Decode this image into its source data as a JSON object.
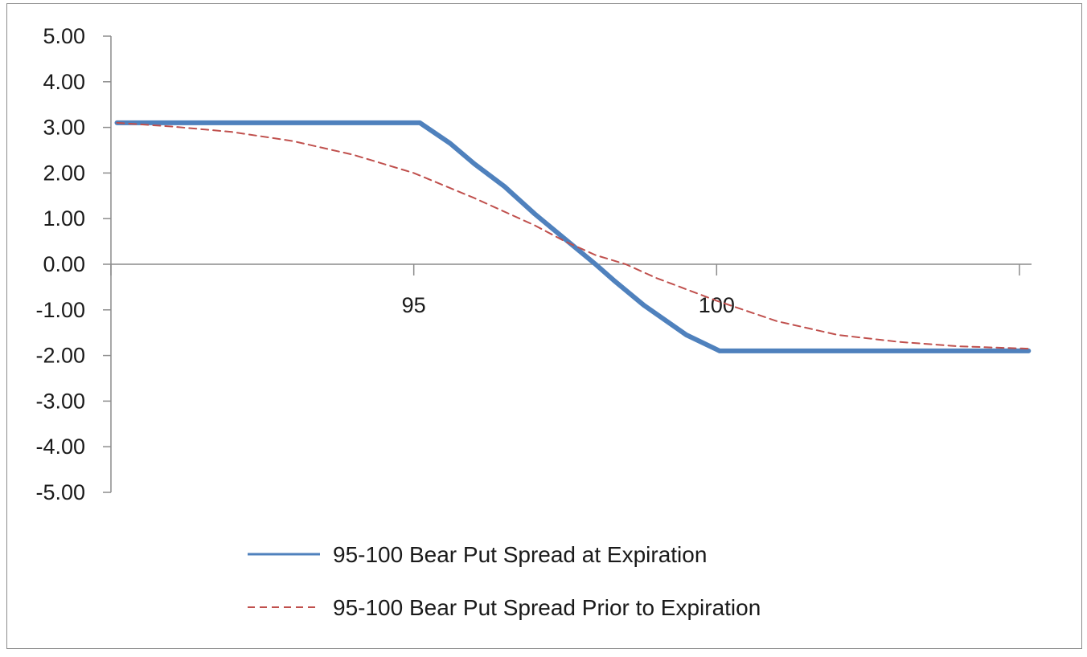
{
  "chart_data": {
    "type": "line",
    "xlim": [
      90,
      105
    ],
    "ylim": [
      -5,
      5
    ],
    "x_ticks": [
      {
        "value": 95,
        "label": "95"
      },
      {
        "value": 100,
        "label": "100"
      }
    ],
    "y_ticks": [
      {
        "value": 5,
        "label": "5.00"
      },
      {
        "value": 4,
        "label": "4.00"
      },
      {
        "value": 3,
        "label": "3.00"
      },
      {
        "value": 2,
        "label": "2.00"
      },
      {
        "value": 1,
        "label": "1.00"
      },
      {
        "value": 0,
        "label": "0.00"
      },
      {
        "value": -1,
        "label": "-1.00"
      },
      {
        "value": -2,
        "label": "-2.00"
      },
      {
        "value": -3,
        "label": "-3.00"
      },
      {
        "value": -4,
        "label": "-4.00"
      },
      {
        "value": -5,
        "label": "-5.00"
      }
    ],
    "grid": false,
    "legend_position": "bottom",
    "series": [
      {
        "name": "95-100 Bear Put Spread at Expiration",
        "color": "#4f81bd",
        "style": "solid",
        "x": [
          90.1,
          95.1,
          95.6,
          96.0,
          96.5,
          97.0,
          97.5,
          98.0,
          98.3,
          98.8,
          99.5,
          100.05,
          105.15
        ],
        "y": [
          3.1,
          3.1,
          2.65,
          2.2,
          1.7,
          1.1,
          0.55,
          0.0,
          -0.35,
          -0.9,
          -1.55,
          -1.9,
          -1.9
        ]
      },
      {
        "name": "95-100 Bear Put Spread Prior to Expiration",
        "color": "#c0504d",
        "style": "dashed",
        "x": [
          90.1,
          91.0,
          92.0,
          93.0,
          94.0,
          95.0,
          96.0,
          97.0,
          97.5,
          98.0,
          98.5,
          99.0,
          100.0,
          101.0,
          102.0,
          103.0,
          104.0,
          105.15
        ],
        "y": [
          3.1,
          3.02,
          2.9,
          2.7,
          2.4,
          2.0,
          1.45,
          0.85,
          0.5,
          0.2,
          0.0,
          -0.3,
          -0.8,
          -1.25,
          -1.55,
          -1.7,
          -1.8,
          -1.85
        ]
      }
    ]
  }
}
